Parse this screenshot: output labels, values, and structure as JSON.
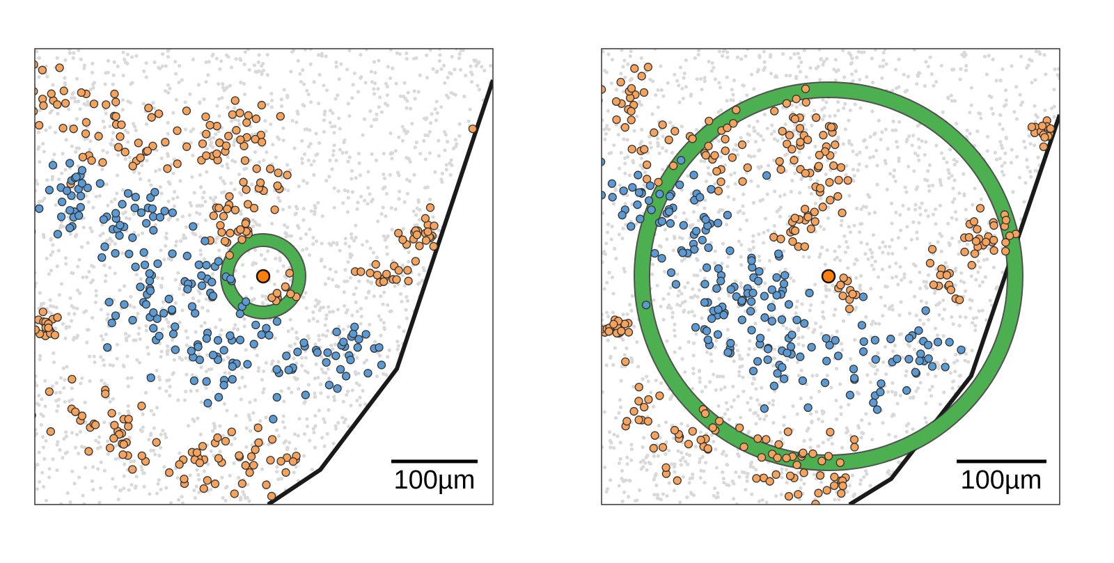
{
  "panels": [
    {
      "scale_bar": "100µm"
    },
    {
      "scale_bar": "100µm"
    }
  ]
}
